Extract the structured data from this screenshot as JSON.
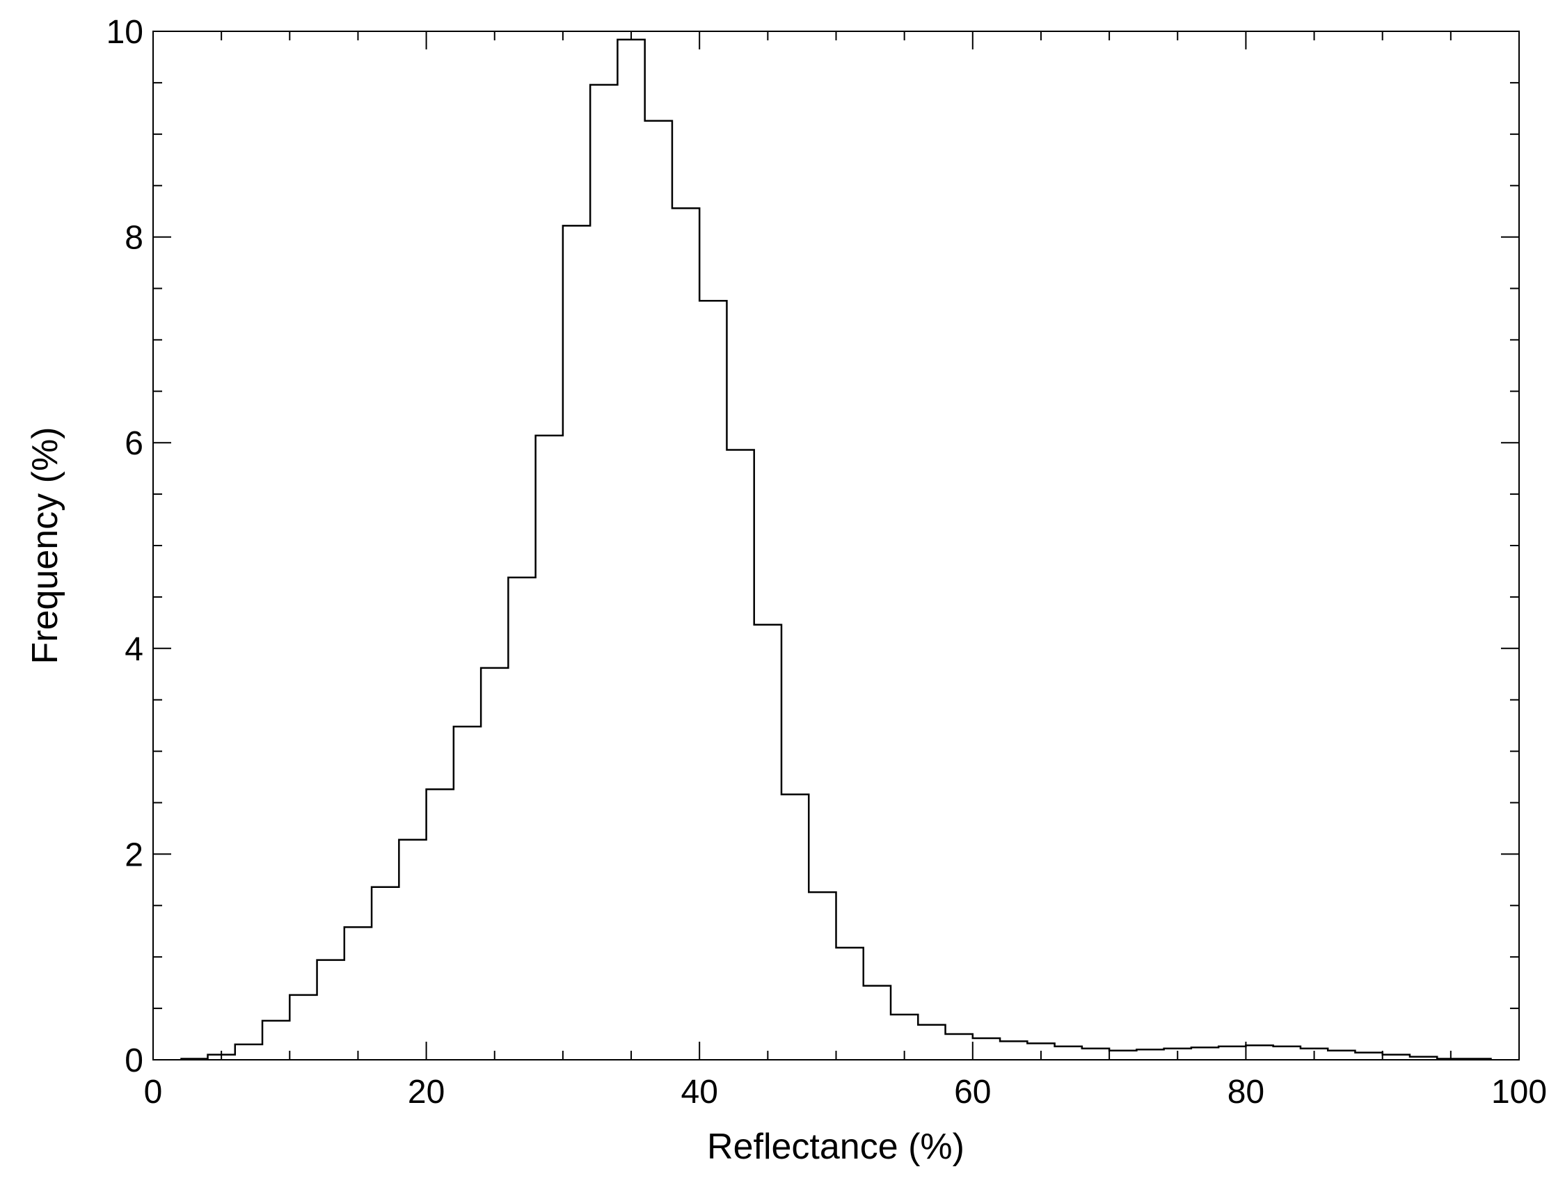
{
  "chart_data": {
    "type": "histogram",
    "title": "",
    "xlabel": "Reflectance (%)",
    "ylabel": "Frequency (%)",
    "xlim": [
      0,
      100
    ],
    "ylim": [
      0,
      10
    ],
    "grid": false,
    "x_ticks": [
      0,
      20,
      40,
      60,
      80,
      100
    ],
    "y_ticks": [
      0,
      2,
      4,
      6,
      8,
      10
    ],
    "x_tick_labels": [
      "0",
      "20",
      "40",
      "60",
      "80",
      "100"
    ],
    "y_tick_labels": [
      "0",
      "2",
      "4",
      "6",
      "8",
      "10"
    ],
    "bin_edges": [
      2,
      4,
      6,
      8,
      10,
      12,
      14,
      16,
      18,
      20,
      22,
      24,
      26,
      28,
      30,
      32,
      34,
      36,
      38,
      40,
      42,
      44,
      46,
      48,
      50,
      52,
      54,
      56,
      58,
      60,
      62,
      64,
      66,
      68,
      70,
      72,
      74,
      76,
      78,
      80,
      82,
      84,
      86,
      88,
      90,
      92,
      94,
      96,
      98
    ],
    "values": [
      0.01,
      0.05,
      0.15,
      0.38,
      0.63,
      0.97,
      1.29,
      1.68,
      2.14,
      2.63,
      3.24,
      3.81,
      4.69,
      6.07,
      8.11,
      9.48,
      9.92,
      9.13,
      8.28,
      7.38,
      5.93,
      4.23,
      2.58,
      1.63,
      1.09,
      0.72,
      0.44,
      0.34,
      0.25,
      0.21,
      0.18,
      0.16,
      0.13,
      0.11,
      0.09,
      0.1,
      0.11,
      0.12,
      0.13,
      0.14,
      0.13,
      0.11,
      0.09,
      0.07,
      0.05,
      0.03,
      0.01,
      0.01
    ]
  }
}
